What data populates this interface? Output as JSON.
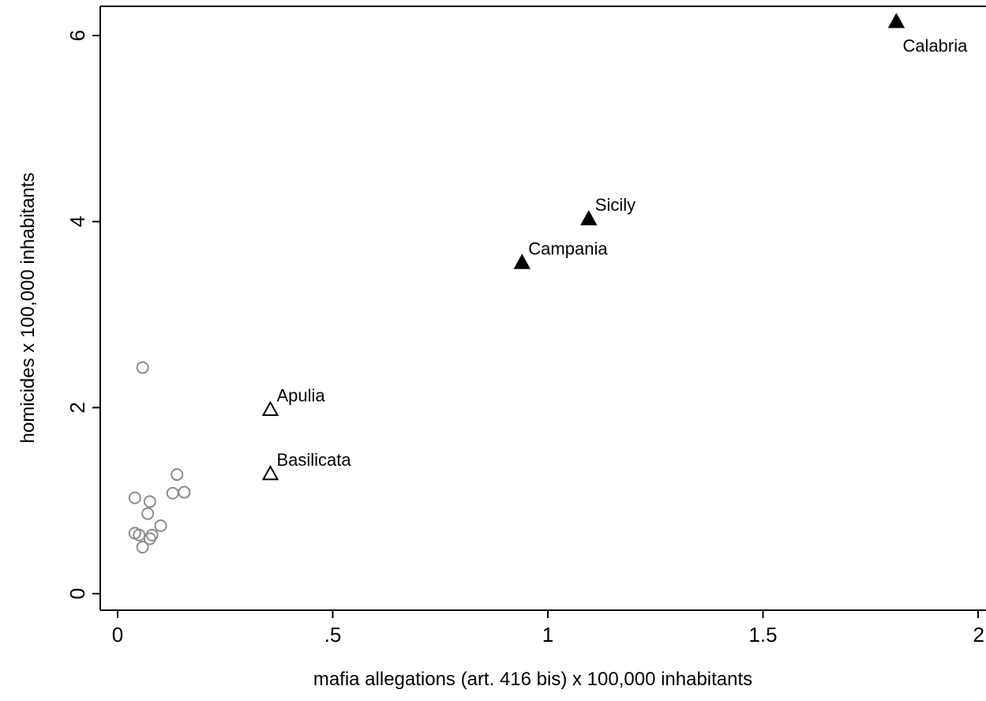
{
  "chart_data": {
    "type": "scatter",
    "xlabel": "mafia allegations (art. 416 bis) x 100,000 inhabitants",
    "ylabel": "homicides x 100,000 inhabitants",
    "xlim": [
      0,
      2
    ],
    "ylim": [
      0,
      6.2
    ],
    "grid": false,
    "x_ticks": [
      {
        "value": 0,
        "label": "0"
      },
      {
        "value": 0.5,
        "label": ".5"
      },
      {
        "value": 1,
        "label": "1"
      },
      {
        "value": 1.5,
        "label": "1.5"
      },
      {
        "value": 2,
        "label": "2"
      }
    ],
    "y_ticks": [
      {
        "value": 0,
        "label": "0"
      },
      {
        "value": 2,
        "label": "2"
      },
      {
        "value": 4,
        "label": "4"
      },
      {
        "value": 6,
        "label": "6"
      }
    ],
    "series": [
      {
        "marker": "hollow-circle",
        "color": "#8c8c8c",
        "points": [
          {
            "x": 0.058,
            "y": 2.43
          },
          {
            "x": 0.04,
            "y": 1.03
          },
          {
            "x": 0.075,
            "y": 0.99
          },
          {
            "x": 0.07,
            "y": 0.86
          },
          {
            "x": 0.1,
            "y": 0.73
          },
          {
            "x": 0.04,
            "y": 0.65
          },
          {
            "x": 0.05,
            "y": 0.63
          },
          {
            "x": 0.075,
            "y": 0.59
          },
          {
            "x": 0.08,
            "y": 0.63
          },
          {
            "x": 0.058,
            "y": 0.5
          },
          {
            "x": 0.138,
            "y": 1.28
          },
          {
            "x": 0.128,
            "y": 1.08
          },
          {
            "x": 0.155,
            "y": 1.09
          }
        ]
      },
      {
        "marker": "hollow-triangle",
        "color": "#000000",
        "points": [
          {
            "x": 0.355,
            "y": 1.98,
            "label": "Apulia"
          },
          {
            "x": 0.355,
            "y": 1.29,
            "label": "Basilicata"
          }
        ]
      },
      {
        "marker": "filled-triangle",
        "color": "#000000",
        "points": [
          {
            "x": 1.81,
            "y": 6.15,
            "label": "Calabria"
          },
          {
            "x": 1.095,
            "y": 4.03,
            "label": "Sicily"
          },
          {
            "x": 0.94,
            "y": 3.56,
            "label": "Campania"
          }
        ]
      }
    ]
  }
}
